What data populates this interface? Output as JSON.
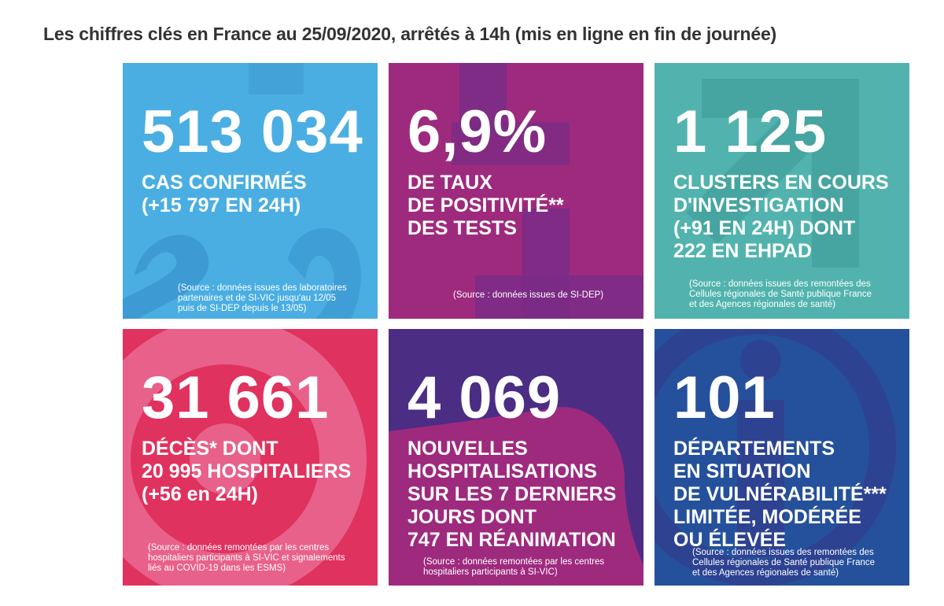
{
  "title": "Les chiffres clés en France au 25/09/2020, arrêtés à 14h (mis en ligne en fin de journée)",
  "tiles": [
    {
      "id": "cases",
      "color": "#4aaee3",
      "value": "513 034",
      "lines": [
        "CAS CONFIRMÉS",
        "(+15 797 EN 24H)"
      ],
      "source": [
        "(Source : données issues des laboratoires",
        "partenaires et de SI-VIC jusqu'au 12/05",
        "puis de SI-DEP depuis le 13/05)"
      ]
    },
    {
      "id": "positivity",
      "color": "#9e2a7e",
      "value": "6,9%",
      "lines": [
        "DE TAUX",
        "DE POSITIVITÉ**",
        "DES TESTS"
      ],
      "source": [
        "(Source : données issues de SI-DEP)"
      ]
    },
    {
      "id": "clusters",
      "color": "#52b3ae",
      "value": "1 125",
      "lines": [
        "CLUSTERS EN COURS",
        "D'INVESTIGATION",
        "(+91 EN 24H) DONT",
        "222 EN EHPAD"
      ],
      "source": [
        "(Source : données issues des remontées des",
        "Cellules régionales de Santé publique France",
        "et des Agences régionales de santé)"
      ]
    },
    {
      "id": "deaths",
      "color": "#e0325f",
      "value": "31 661",
      "lines": [
        "DÉCÈS* DONT",
        "20 995 HOSPITALIERS",
        "(+56 en 24H)"
      ],
      "source": [
        "(Source : données remontées par les centres",
        "hospitaliers participants à SI-VIC et signalements",
        "liés au COVID-19 dans les ESMS)"
      ]
    },
    {
      "id": "hospitalisations",
      "color": "#4b2d84",
      "value": "4 069",
      "lines": [
        "NOUVELLES",
        "HOSPITALISATIONS",
        "SUR LES 7 DERNIERS",
        "JOURS DONT",
        "747 EN RÉANIMATION"
      ],
      "source": [
        "(Source : données remontées par les centres",
        "hospitaliers participants à SI-VIC)"
      ]
    },
    {
      "id": "departments",
      "color": "#25519c",
      "value": "101",
      "lines": [
        "DÉPARTEMENTS",
        "EN SITUATION",
        "DE VULNÉRABILITÉ***",
        "LIMITÉE, MODÉRÉE",
        "OU ÉLEVÉE"
      ],
      "source": [
        "(Source : données issues des remontées des",
        "Cellules régionales de Santé publique France",
        "et des Agences régionales de santé)"
      ]
    }
  ]
}
